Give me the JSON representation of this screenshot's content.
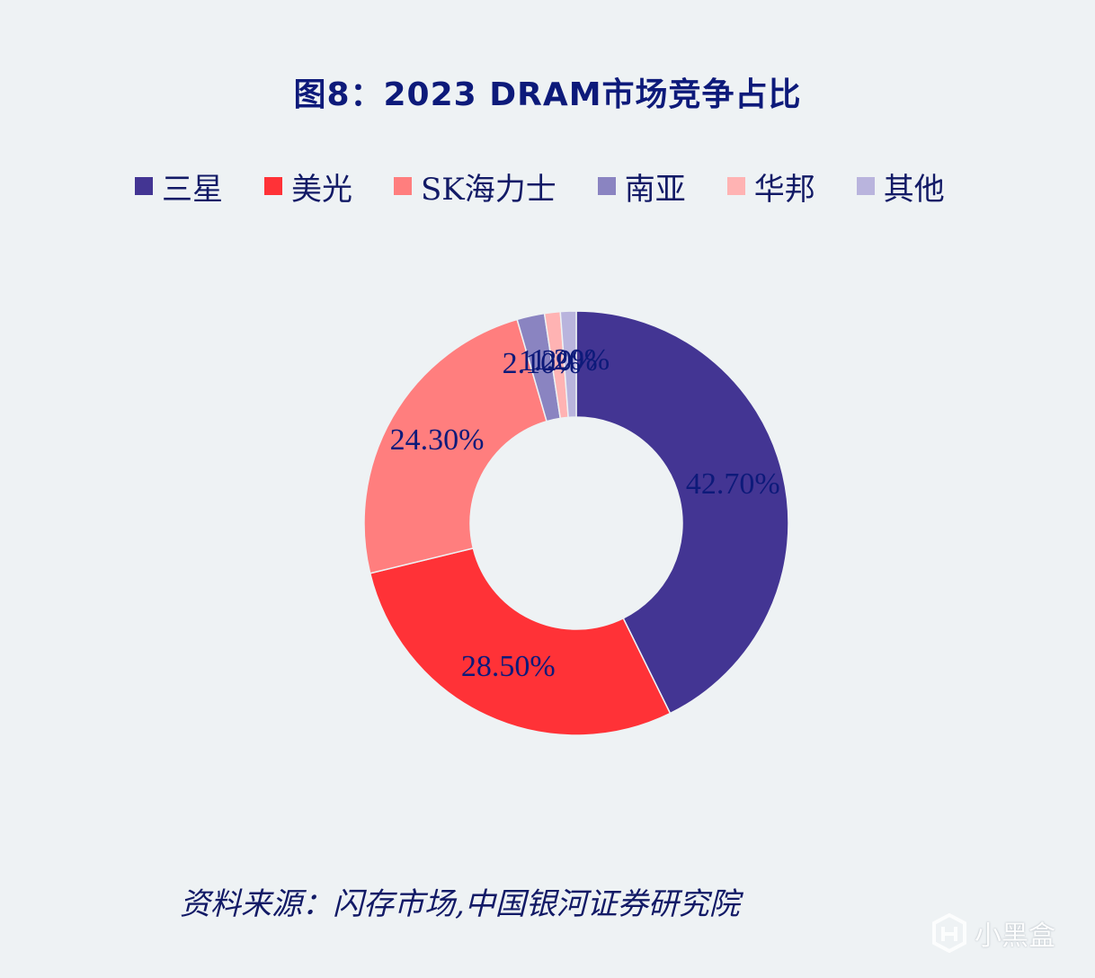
{
  "chart_data": {
    "type": "pie",
    "title": "图8：2023 DRAM市场竞争占比",
    "source": "资料来源：闪存市场,中国银河证券研究院",
    "donut": true,
    "legend_position": "top",
    "slices": [
      {
        "name": "三星",
        "value": 42.7,
        "label": "42.70%",
        "color": "#433593"
      },
      {
        "name": "美光",
        "value": 28.5,
        "label": "28.50%",
        "color": "#ff3237"
      },
      {
        "name": "SK海力士",
        "value": 24.3,
        "label": "24.30%",
        "color": "#ff7e7e"
      },
      {
        "name": "南亚",
        "value": 2.1,
        "label": "2.10%",
        "color": "#8a84c1"
      },
      {
        "name": "华邦",
        "value": 1.2,
        "label": "1.20%",
        "color": "#ffb3b3"
      },
      {
        "name": "其他",
        "value": 1.2,
        "label": "1.20%",
        "color": "#b9b4dd"
      }
    ]
  },
  "watermark": {
    "text": "小黑盒",
    "icon": "xiaoheihe-logo-icon"
  }
}
